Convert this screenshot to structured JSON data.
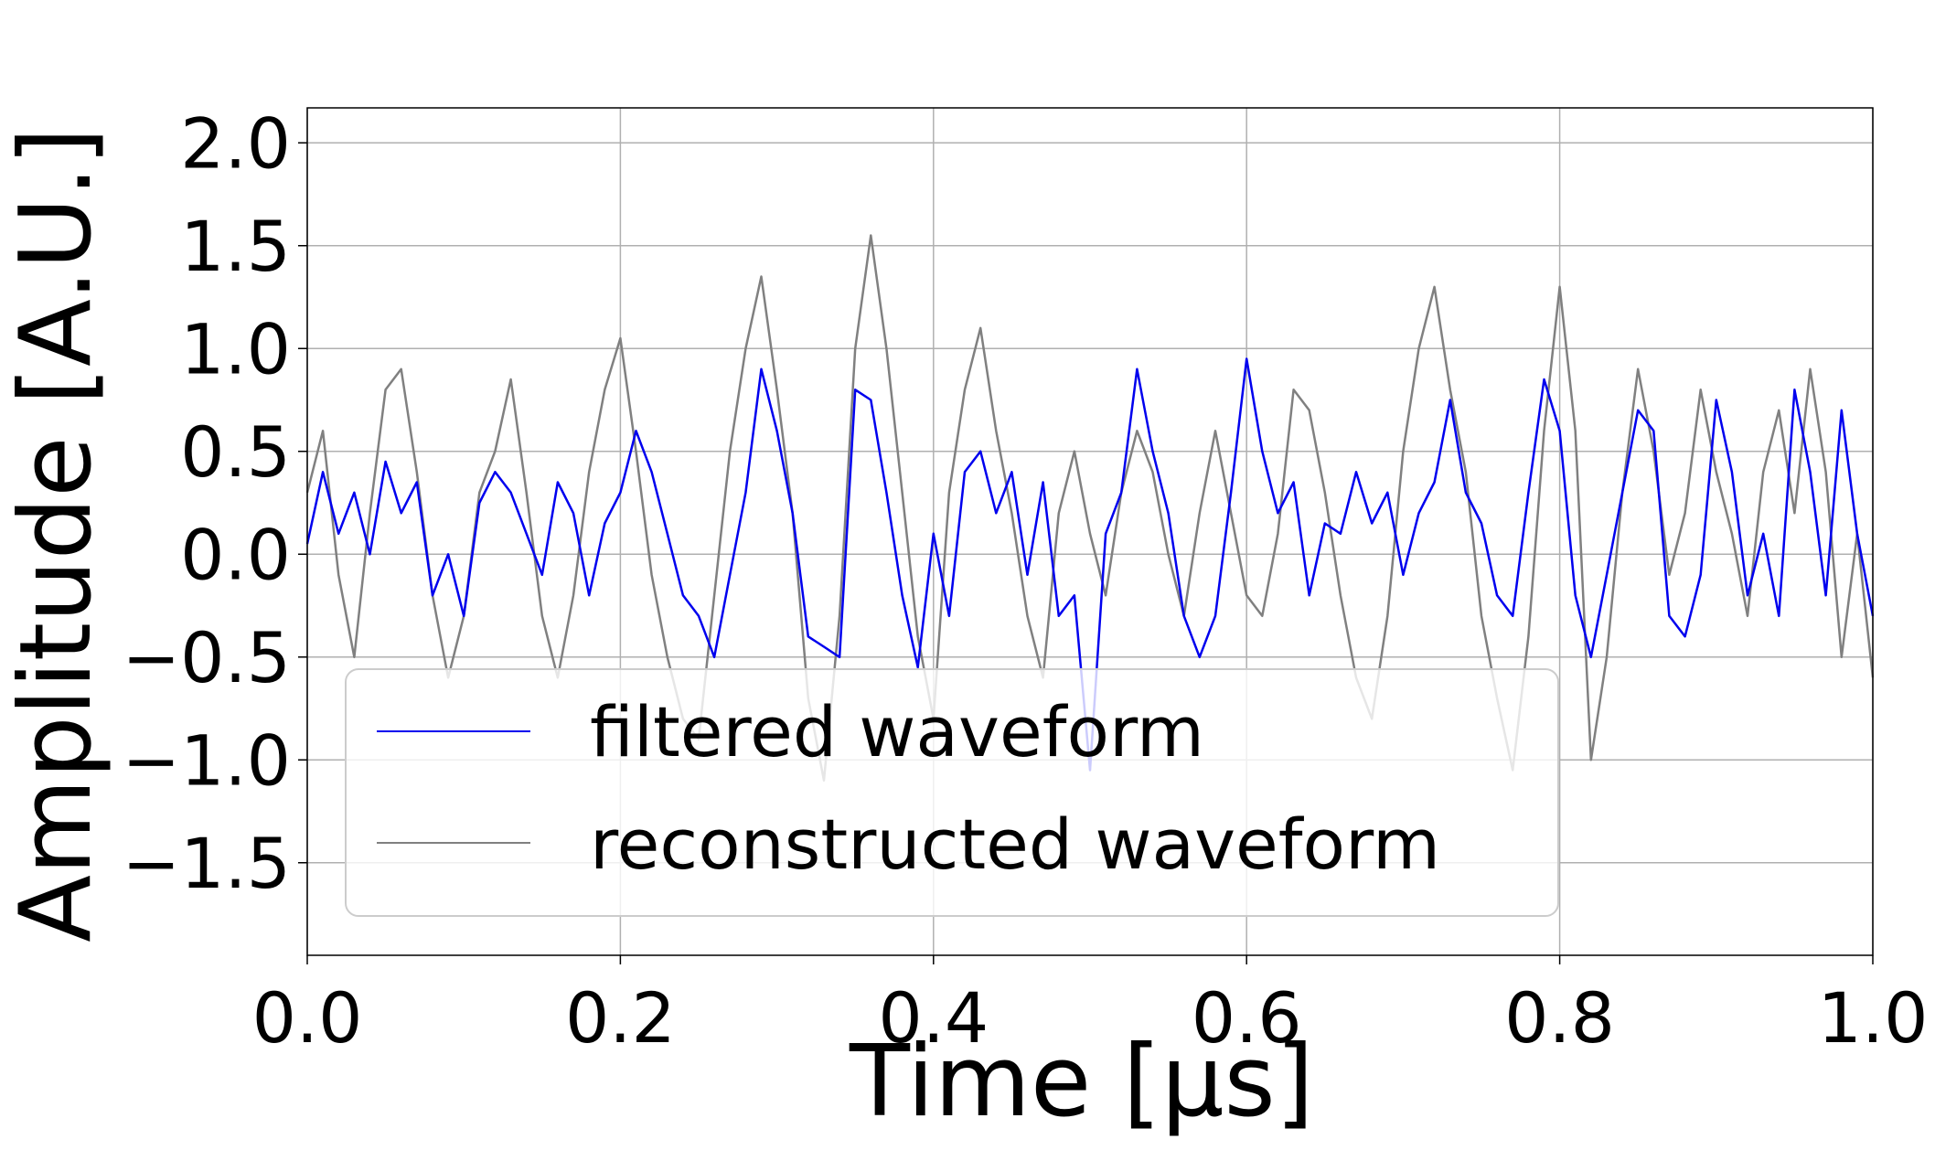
{
  "chart_data": {
    "type": "line",
    "xlabel": "Time [μs]",
    "ylabel": "Amplitude [A.U.]",
    "xlim": [
      0.0,
      1.0
    ],
    "ylim": [
      -1.95,
      2.17
    ],
    "x_ticks": [
      "0.0",
      "0.2",
      "0.4",
      "0.6",
      "0.8",
      "1.0"
    ],
    "y_ticks": [
      "2.0",
      "1.5",
      "1.0",
      "0.5",
      "0.0",
      "−0.5",
      "−1.0",
      "−1.5"
    ],
    "grid": true,
    "legend_position": "lower-left",
    "series": [
      {
        "name": "filtered waveform",
        "color": "#0000ee",
        "x": [
          0.0,
          0.01,
          0.02,
          0.03,
          0.04,
          0.05,
          0.06,
          0.07,
          0.08,
          0.09,
          0.1,
          0.11,
          0.12,
          0.13,
          0.14,
          0.15,
          0.16,
          0.17,
          0.18,
          0.19,
          0.2,
          0.21,
          0.22,
          0.23,
          0.24,
          0.25,
          0.26,
          0.27,
          0.28,
          0.29,
          0.3,
          0.31,
          0.32,
          0.33,
          0.34,
          0.35,
          0.36,
          0.37,
          0.38,
          0.39,
          0.4,
          0.41,
          0.42,
          0.43,
          0.44,
          0.45,
          0.46,
          0.47,
          0.48,
          0.49,
          0.5,
          0.51,
          0.52,
          0.53,
          0.54,
          0.55,
          0.56,
          0.57,
          0.58,
          0.59,
          0.6,
          0.61,
          0.62,
          0.63,
          0.64,
          0.65,
          0.66,
          0.67,
          0.68,
          0.69,
          0.7,
          0.71,
          0.72,
          0.73,
          0.74,
          0.75,
          0.76,
          0.77,
          0.78,
          0.79,
          0.8,
          0.81,
          0.82,
          0.83,
          0.84,
          0.85,
          0.86,
          0.87,
          0.88,
          0.89,
          0.9,
          0.91,
          0.92,
          0.93,
          0.94,
          0.95,
          0.96,
          0.97,
          0.98,
          0.99,
          1.0
        ],
        "y": [
          0.05,
          0.4,
          0.1,
          0.3,
          0.0,
          0.45,
          0.2,
          0.35,
          -0.2,
          0.0,
          -0.3,
          0.25,
          0.4,
          0.3,
          0.1,
          -0.1,
          0.35,
          0.2,
          -0.2,
          0.15,
          0.3,
          0.6,
          0.4,
          0.1,
          -0.2,
          -0.3,
          -0.5,
          -0.1,
          0.3,
          0.9,
          0.6,
          0.2,
          -0.4,
          -0.45,
          -0.5,
          0.8,
          0.75,
          0.3,
          -0.2,
          -0.55,
          0.1,
          -0.3,
          0.4,
          0.5,
          0.2,
          0.4,
          -0.1,
          0.35,
          -0.3,
          -0.2,
          -1.05,
          0.1,
          0.3,
          0.9,
          0.5,
          0.2,
          -0.3,
          -0.5,
          -0.3,
          0.3,
          0.95,
          0.5,
          0.2,
          0.35,
          -0.2,
          0.15,
          0.1,
          0.4,
          0.15,
          0.3,
          -0.1,
          0.2,
          0.35,
          0.75,
          0.3,
          0.15,
          -0.2,
          -0.3,
          0.3,
          0.85,
          0.6,
          -0.2,
          -0.5,
          -0.1,
          0.3,
          0.7,
          0.6,
          -0.3,
          -0.4,
          -0.1,
          0.75,
          0.4,
          -0.2,
          0.1,
          -0.3,
          0.8,
          0.4,
          -0.2,
          0.7,
          0.1,
          -0.3
        ]
      },
      {
        "name": "reconstructed waveform",
        "color": "#808080",
        "x": [
          0.0,
          0.01,
          0.02,
          0.03,
          0.04,
          0.05,
          0.06,
          0.07,
          0.08,
          0.09,
          0.1,
          0.11,
          0.12,
          0.13,
          0.14,
          0.15,
          0.16,
          0.17,
          0.18,
          0.19,
          0.2,
          0.21,
          0.22,
          0.23,
          0.24,
          0.25,
          0.26,
          0.27,
          0.28,
          0.29,
          0.3,
          0.31,
          0.32,
          0.33,
          0.34,
          0.35,
          0.36,
          0.37,
          0.38,
          0.39,
          0.4,
          0.41,
          0.42,
          0.43,
          0.44,
          0.45,
          0.46,
          0.47,
          0.48,
          0.49,
          0.5,
          0.51,
          0.52,
          0.53,
          0.54,
          0.55,
          0.56,
          0.57,
          0.58,
          0.59,
          0.6,
          0.61,
          0.62,
          0.63,
          0.64,
          0.65,
          0.66,
          0.67,
          0.68,
          0.69,
          0.7,
          0.71,
          0.72,
          0.73,
          0.74,
          0.75,
          0.76,
          0.77,
          0.78,
          0.79,
          0.8,
          0.81,
          0.82,
          0.83,
          0.84,
          0.85,
          0.86,
          0.87,
          0.88,
          0.89,
          0.9,
          0.91,
          0.92,
          0.93,
          0.94,
          0.95,
          0.96,
          0.97,
          0.98,
          0.99,
          1.0
        ],
        "y": [
          0.3,
          0.6,
          -0.1,
          -0.5,
          0.2,
          0.8,
          0.9,
          0.4,
          -0.2,
          -0.6,
          -0.3,
          0.3,
          0.5,
          0.85,
          0.3,
          -0.3,
          -0.6,
          -0.2,
          0.4,
          0.8,
          1.05,
          0.5,
          -0.1,
          -0.5,
          -0.8,
          -0.9,
          -0.2,
          0.5,
          1.0,
          1.35,
          0.8,
          0.2,
          -0.7,
          -1.1,
          -0.3,
          1.0,
          1.55,
          1.0,
          0.3,
          -0.4,
          -0.8,
          0.3,
          0.8,
          1.1,
          0.6,
          0.2,
          -0.3,
          -0.6,
          0.2,
          0.5,
          0.1,
          -0.2,
          0.3,
          0.6,
          0.4,
          0.0,
          -0.3,
          0.2,
          0.6,
          0.2,
          -0.2,
          -0.3,
          0.1,
          0.8,
          0.7,
          0.3,
          -0.2,
          -0.6,
          -0.8,
          -0.3,
          0.5,
          1.0,
          1.3,
          0.8,
          0.4,
          -0.3,
          -0.7,
          -1.05,
          -0.4,
          0.6,
          1.3,
          0.6,
          -1.0,
          -0.5,
          0.3,
          0.9,
          0.5,
          -0.1,
          0.2,
          0.8,
          0.4,
          0.1,
          -0.3,
          0.4,
          0.7,
          0.2,
          0.9,
          0.4,
          -0.5,
          0.1,
          -0.6
        ]
      }
    ]
  }
}
